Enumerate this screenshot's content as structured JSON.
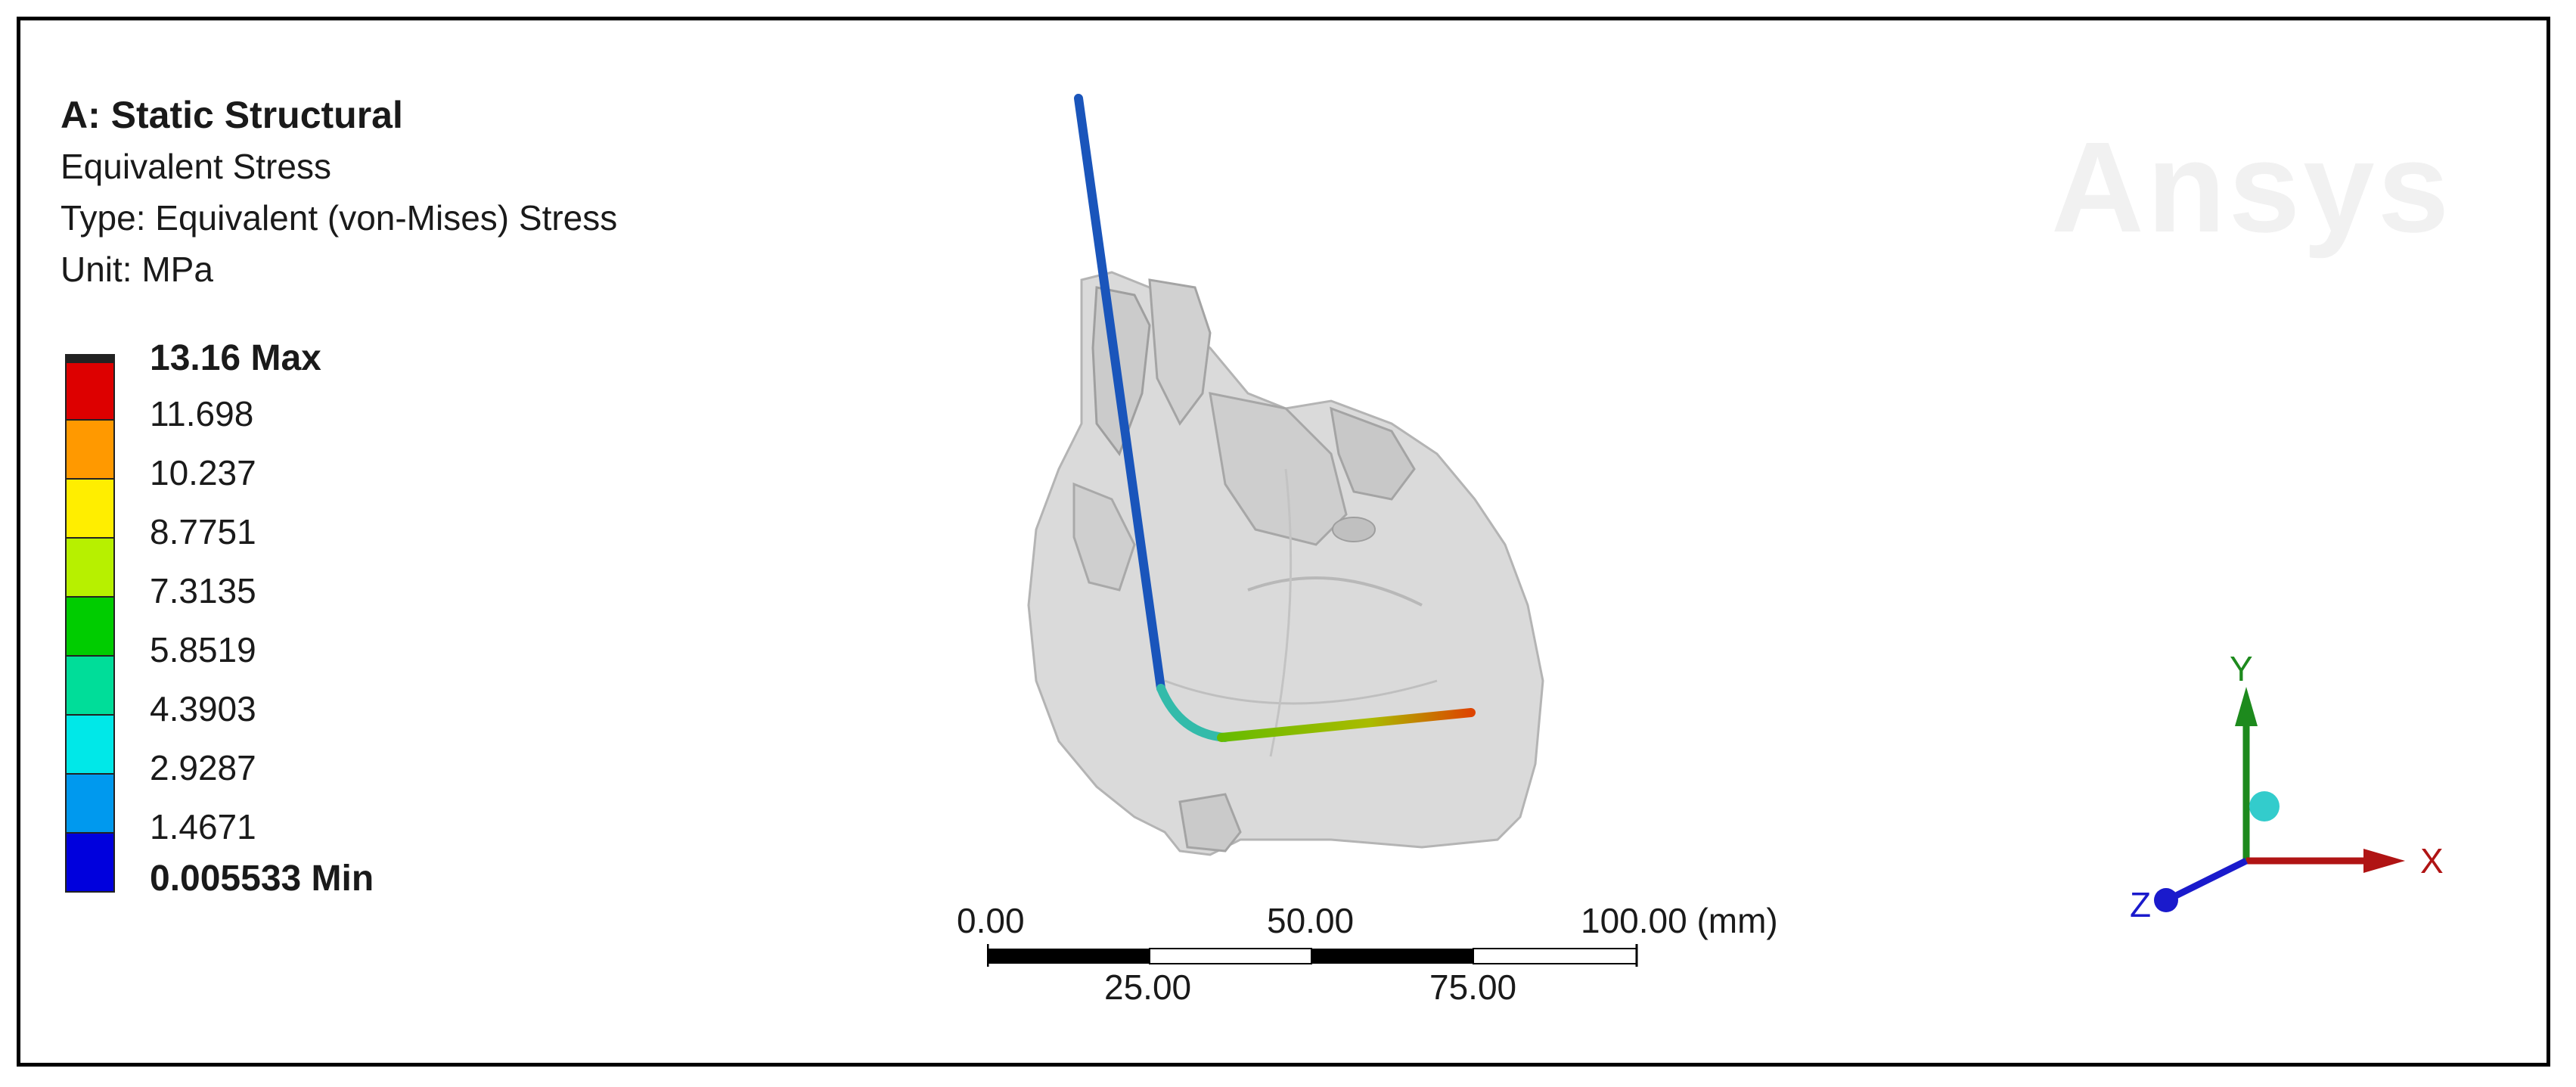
{
  "header": {
    "title": "A: Static Structural",
    "result_name": "Equivalent Stress",
    "type": "Type: Equivalent (von-Mises) Stress",
    "unit": "Unit: MPa"
  },
  "legend": {
    "max_label": "13.16 Max",
    "min_label": "0.005533 Min",
    "levels": [
      "11.698",
      "10.237",
      "8.7751",
      "7.3135",
      "5.8519",
      "4.3903",
      "2.9287",
      "1.4671"
    ],
    "colors": [
      "#dd0000",
      "#ff9900",
      "#ffee00",
      "#b7f000",
      "#00cc00",
      "#00dd99",
      "#00e8e8",
      "#0099ee",
      "#0000dd"
    ]
  },
  "watermark": "Ansys",
  "scale_bar": {
    "top_ticks": [
      "0.00",
      "50.00",
      "100.00 (mm)"
    ],
    "bottom_ticks": [
      "25.00",
      "75.00"
    ]
  },
  "triad": {
    "x_label": "X",
    "y_label": "Y",
    "z_label": "Z",
    "x_color": "#b01414",
    "y_color": "#1d8a1d",
    "z_color": "#1a1acc"
  }
}
